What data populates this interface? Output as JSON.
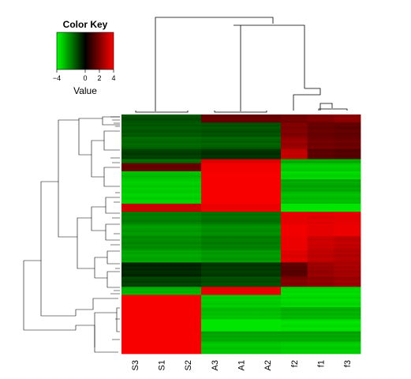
{
  "chart_data": {
    "type": "heatmap",
    "columns": [
      "S3",
      "S1",
      "S2",
      "A3",
      "A1",
      "A2",
      "f2",
      "f1",
      "f3"
    ],
    "color_key": {
      "title": "Color Key",
      "label": "Value",
      "ticks": [
        "-4",
        "0",
        "2",
        "4"
      ],
      "range": [
        -4,
        4
      ],
      "low_color": "#00ff00",
      "mid_color": "#000000",
      "high_color": "#ff0000"
    },
    "blocks": [
      {
        "rows": 4,
        "values": [
          -1.2,
          -1.2,
          -1.2,
          1.6,
          1.6,
          1.6,
          1.8,
          2.0,
          2.2
        ]
      },
      {
        "rows": 7,
        "values": [
          -1.4,
          -1.4,
          -1.4,
          -1.3,
          -1.3,
          -1.3,
          2.0,
          1.6,
          1.5
        ]
      },
      {
        "rows": 6,
        "values": [
          -1.6,
          -1.6,
          -1.6,
          -1.5,
          -1.5,
          -1.5,
          2.4,
          1.8,
          1.7
        ]
      },
      {
        "rows": 5,
        "values": [
          -1.0,
          -1.0,
          -1.0,
          -0.8,
          -0.8,
          -0.8,
          3.0,
          1.4,
          1.3
        ]
      },
      {
        "rows": 2,
        "values": [
          -1.6,
          -1.6,
          -1.6,
          3.5,
          3.5,
          3.5,
          -2.6,
          -2.6,
          -2.6
        ]
      },
      {
        "rows": 4,
        "values": [
          1.6,
          1.6,
          1.6,
          3.8,
          3.8,
          3.8,
          -3.2,
          -3.2,
          -3.2
        ]
      },
      {
        "rows": 4,
        "values": [
          -3.0,
          -3.0,
          -3.0,
          3.9,
          3.9,
          3.9,
          -3.4,
          -3.4,
          -3.4
        ]
      },
      {
        "rows": 6,
        "values": [
          -3.2,
          -3.2,
          -3.2,
          3.9,
          3.9,
          3.9,
          -2.6,
          -2.6,
          -2.6
        ]
      },
      {
        "rows": 6,
        "values": [
          -3.3,
          -3.3,
          -3.3,
          3.9,
          3.9,
          3.9,
          -3.0,
          -3.0,
          -3.0
        ]
      },
      {
        "rows": 4,
        "values": [
          3.2,
          3.2,
          3.2,
          3.7,
          3.7,
          3.7,
          -3.6,
          -3.6,
          -3.6
        ]
      },
      {
        "rows": 6,
        "values": [
          -2.0,
          -2.0,
          -2.0,
          -1.8,
          -1.8,
          -1.8,
          3.6,
          3.5,
          3.6
        ]
      },
      {
        "rows": 6,
        "values": [
          -2.4,
          -2.4,
          -2.4,
          -2.2,
          -2.2,
          -2.2,
          3.8,
          3.6,
          3.7
        ]
      },
      {
        "rows": 7,
        "values": [
          -2.2,
          -2.2,
          -2.2,
          -2.0,
          -2.0,
          -2.0,
          3.7,
          3.2,
          3.0
        ]
      },
      {
        "rows": 6,
        "values": [
          -2.6,
          -2.6,
          -2.6,
          -2.4,
          -2.4,
          -2.4,
          3.5,
          3.0,
          2.8
        ]
      },
      {
        "rows": 7,
        "values": [
          -0.6,
          -0.6,
          -0.6,
          -0.9,
          -0.9,
          -0.9,
          1.4,
          2.4,
          2.6
        ]
      },
      {
        "rows": 5,
        "values": [
          -1.0,
          -1.0,
          -1.0,
          -1.2,
          -1.2,
          -1.2,
          2.0,
          2.2,
          2.4
        ]
      },
      {
        "rows": 4,
        "values": [
          -2.8,
          -2.8,
          -2.8,
          3.6,
          3.6,
          3.6,
          -3.4,
          -3.4,
          -3.4
        ]
      },
      {
        "rows": 6,
        "values": [
          3.9,
          3.9,
          3.9,
          -3.2,
          -3.2,
          -3.2,
          -3.4,
          -3.4,
          -3.4
        ]
      },
      {
        "rows": 6,
        "values": [
          3.9,
          3.9,
          3.9,
          -3.0,
          -3.0,
          -3.0,
          -2.8,
          -2.8,
          -2.8
        ]
      },
      {
        "rows": 6,
        "values": [
          3.9,
          3.9,
          3.9,
          -3.6,
          -3.6,
          -3.6,
          -3.5,
          -3.5,
          -3.5
        ]
      },
      {
        "rows": 5,
        "values": [
          3.9,
          3.9,
          3.9,
          -2.6,
          -2.6,
          -2.6,
          -2.6,
          -2.6,
          -2.6
        ]
      },
      {
        "rows": 6,
        "values": [
          3.9,
          3.9,
          3.9,
          -3.1,
          -3.1,
          -3.1,
          -3.2,
          -3.2,
          -3.2
        ]
      }
    ]
  }
}
